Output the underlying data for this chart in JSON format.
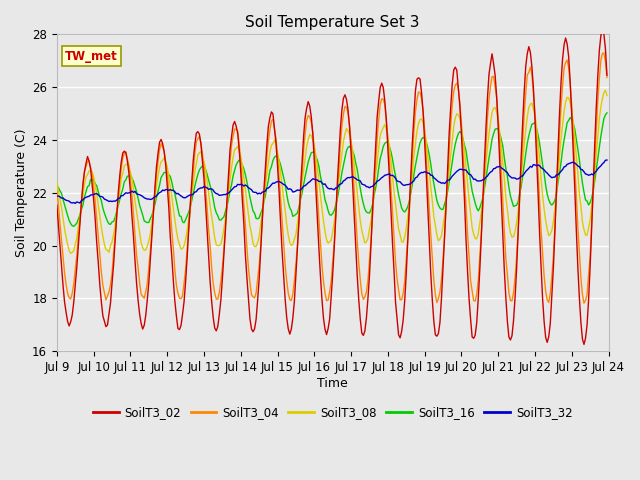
{
  "title": "Soil Temperature Set 3",
  "xlabel": "Time",
  "ylabel": "Soil Temperature (C)",
  "ylim": [
    16,
    28
  ],
  "xlim_days": [
    9,
    24
  ],
  "xtick_labels": [
    "Jul 9",
    "Jul 10",
    "Jul 11",
    "Jul 12",
    "Jul 13",
    "Jul 14",
    "Jul 15",
    "Jul 16",
    "Jul 17",
    "Jul 18",
    "Jul 19",
    "Jul 20",
    "Jul 21",
    "Jul 22",
    "Jul 23",
    "Jul 24"
  ],
  "colors": {
    "SoilT3_02": "#cc0000",
    "SoilT3_04": "#ff8800",
    "SoilT3_08": "#ddcc00",
    "SoilT3_16": "#00cc00",
    "SoilT3_32": "#0000cc"
  },
  "annotation": "TW_met",
  "annotation_color": "#cc0000",
  "annotation_bg": "#ffffcc",
  "annotation_border": "#999900",
  "fig_bg_color": "#e8e8e8",
  "plot_bg_color": "#e8e8e8",
  "grid_color": "#ffffff",
  "legend_labels": [
    "SoilT3_02",
    "SoilT3_04",
    "SoilT3_08",
    "SoilT3_16",
    "SoilT3_32"
  ]
}
